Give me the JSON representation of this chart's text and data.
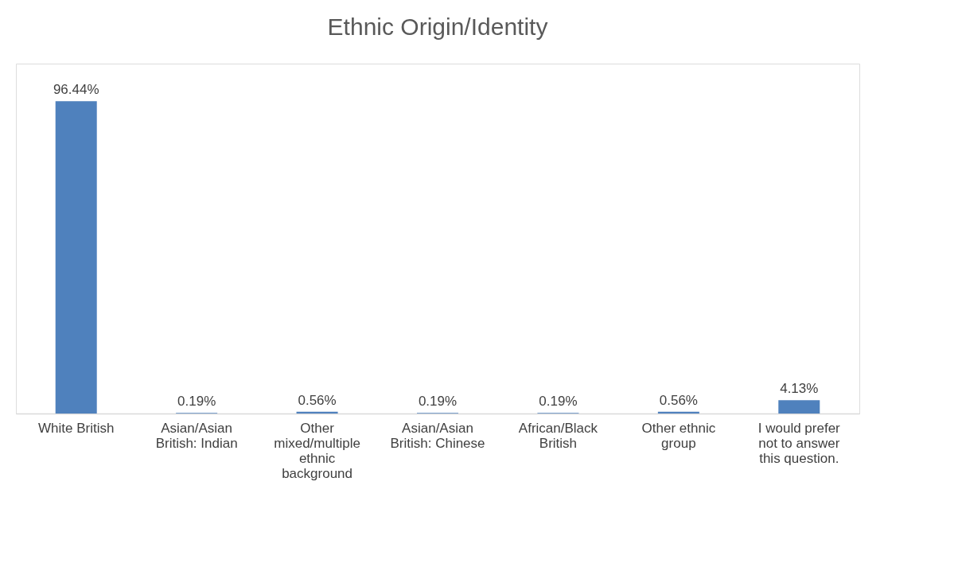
{
  "chart_data": {
    "type": "bar",
    "title": "Ethnic Origin/Identity",
    "categories": [
      "White British",
      "Asian/Asian British: Indian",
      "Other mixed/multiple ethnic background",
      "Asian/Asian British: Chinese",
      "African/Black British",
      "Other ethnic group",
      "I would prefer not to answer this question."
    ],
    "values": [
      96.44,
      0.19,
      0.56,
      0.19,
      0.19,
      0.56,
      4.13
    ],
    "value_labels": [
      "96.44%",
      "0.19%",
      "0.56%",
      "0.19%",
      "0.19%",
      "0.56%",
      "4.13%"
    ],
    "color": "#4f81bd"
  }
}
